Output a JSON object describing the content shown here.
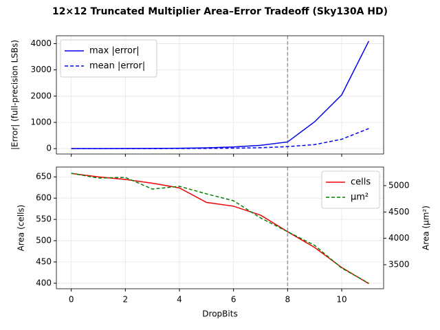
{
  "title": "12×12 Truncated Multiplier Area–Error Tradeoff (Sky130A HD)",
  "chart_data": [
    {
      "type": "line",
      "ylabel": "|Error| (full-precision LSBs)",
      "x": [
        0,
        1,
        2,
        3,
        4,
        5,
        6,
        7,
        8,
        9,
        10,
        11
      ],
      "series": [
        {
          "name": "max |error|",
          "color": "#0000ee",
          "dash": false,
          "values": [
            0,
            1,
            3,
            7,
            15,
            31,
            63,
            127,
            255,
            1023,
            2047,
            4095
          ]
        },
        {
          "name": "mean |error|",
          "color": "#0000ee",
          "dash": true,
          "values": [
            0,
            0,
            1,
            2,
            4,
            9,
            17,
            35,
            76,
            153,
            357,
            764
          ]
        }
      ],
      "xlim": [
        -0.55,
        11.55
      ],
      "ylim": [
        -205,
        4300
      ],
      "yticks": [
        0,
        1000,
        2000,
        3000,
        4000
      ],
      "vline": 8,
      "grid": true,
      "legend": "upper left"
    },
    {
      "type": "line",
      "xlabel": "DropBits",
      "ylabel": "Area (cells)",
      "y2label": "Area (µm²)",
      "x": [
        0,
        1,
        2,
        3,
        4,
        5,
        6,
        7,
        8,
        9,
        10,
        11
      ],
      "series": [
        {
          "name": "cells",
          "color": "#ee0000",
          "dash": false,
          "values": [
            658,
            650,
            644,
            635,
            624,
            590,
            581,
            560,
            521,
            484,
            437,
            399
          ]
        },
        {
          "name": "µm²",
          "color": "#008000",
          "dash": true,
          "axis": "y2",
          "values": [
            5235,
            5143,
            5156,
            4935,
            4987,
            4844,
            4713,
            4387,
            4126,
            3866,
            3435,
            3149
          ]
        }
      ],
      "xlim": [
        -0.55,
        11.55
      ],
      "xticks": [
        0,
        2,
        4,
        6,
        8,
        10
      ],
      "ylim": [
        387,
        673
      ],
      "yticks": [
        400,
        450,
        500,
        550,
        600,
        650
      ],
      "y2lim": [
        3044,
        5352
      ],
      "y2ticks": [
        3500,
        4000,
        4500,
        5000
      ],
      "vline": 8,
      "grid": true,
      "legend": "upper right"
    }
  ]
}
